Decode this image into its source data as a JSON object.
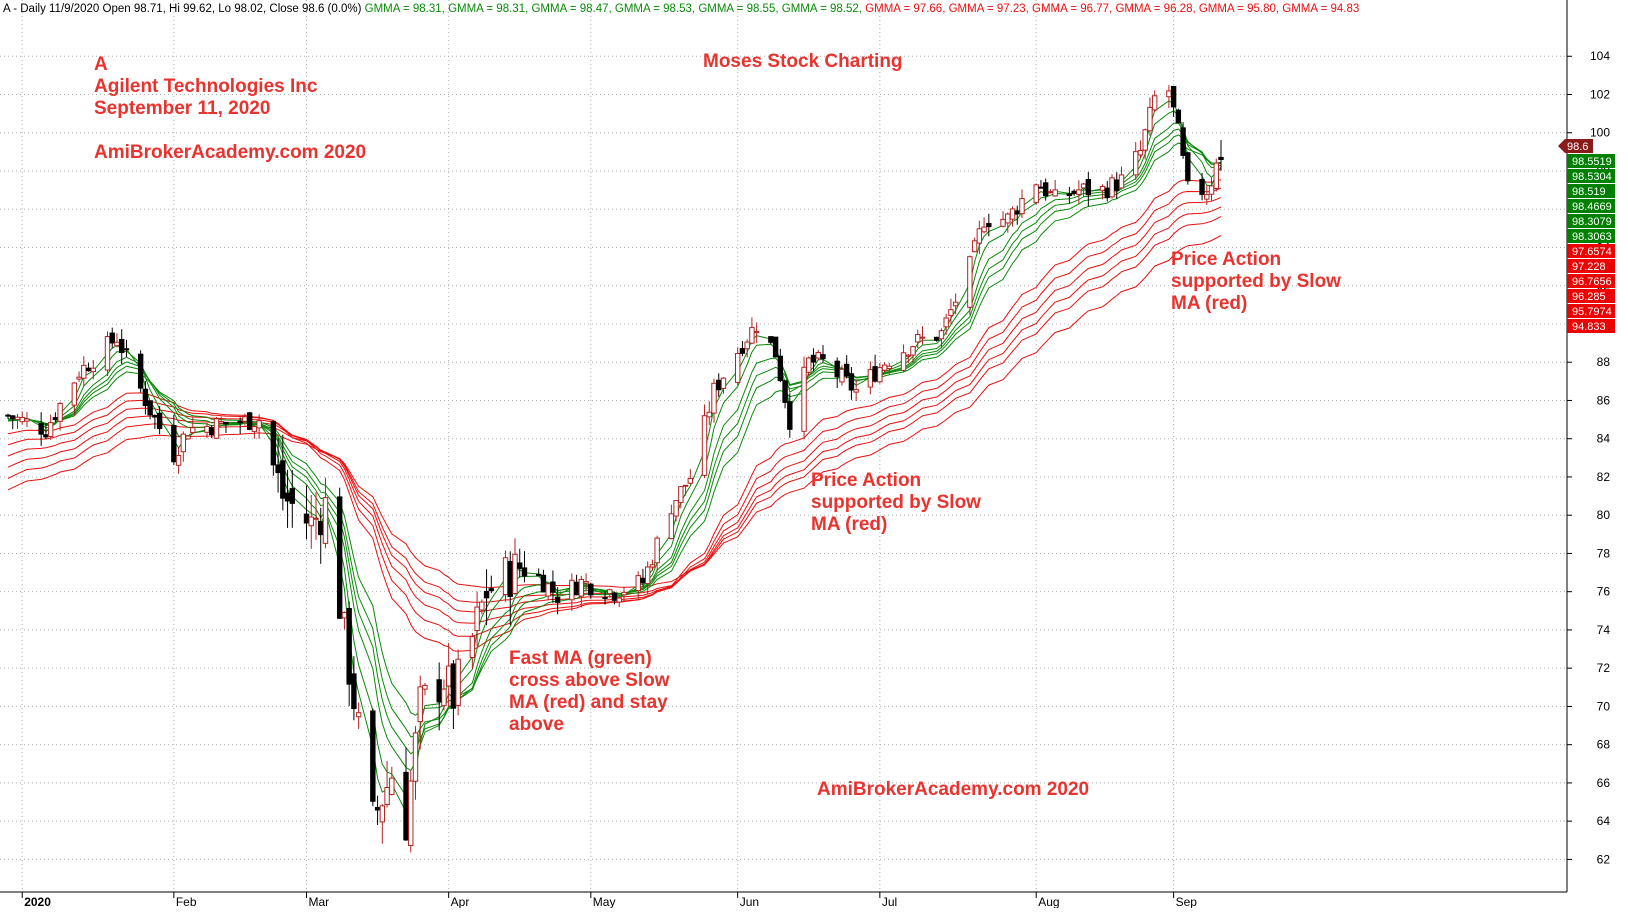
{
  "header": {
    "symbol": "A",
    "period": "Daily",
    "date": "11/9/2020",
    "open_label": "Open",
    "open": "98.71",
    "high_label": "Hi",
    "high": "99.62",
    "low_label": "Lo",
    "low": "98.02",
    "close_label": "Close",
    "close": "98.6",
    "change": "(0.0%)",
    "gmma_label": "GMMA",
    "gmma_fast": [
      "98.31",
      "98.31",
      "98.47",
      "98.53",
      "98.55",
      "98.52"
    ],
    "gmma_slow": [
      "97.66",
      "97.23",
      "96.77",
      "96.28",
      "95.80",
      "94.83"
    ]
  },
  "annotations": {
    "ticker": "A",
    "company": "Agilent Technologies Inc",
    "date_line": "September 11, 2020",
    "site_top": "AmiBrokerAcademy.com  2020",
    "title": "Moses Stock Charting",
    "site_bottom": "AmiBrokerAcademy.com  2020",
    "note_fast_cross": [
      "Fast MA (green)",
      "cross above Slow",
      "MA (red) and stay",
      "above"
    ],
    "note_support_mid": [
      "Price Action",
      "supported by Slow",
      "MA (red)"
    ],
    "note_support_right": [
      "Price Action",
      "supported by Slow",
      "MA (red)"
    ]
  },
  "price_tags": {
    "last": "98.6",
    "fast": [
      "98.5519",
      "98.5304",
      "98.519",
      "98.4669",
      "98.3079",
      "98.3063"
    ],
    "slow": [
      "97.6574",
      "97.228",
      "96.7656",
      "96.285",
      "95.7974",
      "94.833"
    ]
  },
  "colors": {
    "up_candle": "#b22222",
    "down_candle": "#000000",
    "fast_ma": "#0a8a0a",
    "slow_ma": "#e81010",
    "annotation": "#e8332f",
    "fast_tag_bg": "#008000",
    "slow_tag_bg": "#ee0000",
    "last_tag_bg": "#8b1a1a",
    "grid": "#b0b0b0"
  },
  "chart_data": {
    "type": "candlestick",
    "indicator": "GMMA (Guppy Multiple Moving Average)",
    "y_axis": {
      "ticks": [
        62,
        64,
        66,
        68,
        70,
        72,
        74,
        76,
        78,
        80,
        82,
        84,
        86,
        88,
        90,
        92,
        94,
        96,
        98,
        100,
        102,
        104
      ],
      "range": [
        60.4,
        106.0
      ],
      "position": "right"
    },
    "x_axis": {
      "ticks": [
        "2020",
        "Feb",
        "Mar",
        "Apr",
        "May",
        "Jun",
        "Jul",
        "Aug",
        "Sep"
      ],
      "tick_dates": [
        "2020-01-02",
        "2020-02-03",
        "2020-03-02",
        "2020-04-01",
        "2020-05-01",
        "2020-06-01",
        "2020-07-01",
        "2020-08-03",
        "2020-09-01"
      ],
      "range": [
        "2019-12-30",
        "2020-09-11"
      ]
    },
    "grid": true,
    "price_keypoints": [
      [
        "2019-12-30",
        85.2
      ],
      [
        "2020-01-07",
        84.5
      ],
      [
        "2020-01-14",
        87.5
      ],
      [
        "2020-01-22",
        89.3
      ],
      [
        "2020-01-29",
        85.5
      ],
      [
        "2020-02-03",
        83.2
      ],
      [
        "2020-02-06",
        84.5
      ],
      [
        "2020-02-14",
        84.8
      ],
      [
        "2020-02-21",
        85.0
      ],
      [
        "2020-02-26",
        81.0
      ],
      [
        "2020-03-03",
        79.5
      ],
      [
        "2020-03-06",
        80.5
      ],
      [
        "2020-03-11",
        72.0
      ],
      [
        "2020-03-16",
        64.0
      ],
      [
        "2020-03-20",
        66.5
      ],
      [
        "2020-03-23",
        64.0
      ],
      [
        "2020-03-26",
        70.0
      ],
      [
        "2020-03-31",
        71.5
      ],
      [
        "2020-04-02",
        70.5
      ],
      [
        "2020-04-06",
        73.5
      ],
      [
        "2020-04-09",
        76.0
      ],
      [
        "2020-04-17",
        77.5
      ],
      [
        "2020-04-24",
        75.8
      ],
      [
        "2020-04-29",
        76.5
      ],
      [
        "2020-05-06",
        76.0
      ],
      [
        "2020-05-12",
        76.5
      ],
      [
        "2020-05-18",
        80.5
      ],
      [
        "2020-05-22",
        82.0
      ],
      [
        "2020-05-27",
        86.5
      ],
      [
        "2020-06-02",
        89.0
      ],
      [
        "2020-06-05",
        90.0
      ],
      [
        "2020-06-09",
        88.5
      ],
      [
        "2020-06-12",
        85.0
      ],
      [
        "2020-06-16",
        88.0
      ],
      [
        "2020-06-19",
        88.0
      ],
      [
        "2020-06-26",
        86.5
      ],
      [
        "2020-07-02",
        88.0
      ],
      [
        "2020-07-08",
        89.0
      ],
      [
        "2020-07-14",
        89.5
      ],
      [
        "2020-07-20",
        93.0
      ],
      [
        "2020-07-23",
        95.5
      ],
      [
        "2020-07-28",
        95.5
      ],
      [
        "2020-08-03",
        97.5
      ],
      [
        "2020-08-07",
        96.5
      ],
      [
        "2020-08-12",
        97.0
      ],
      [
        "2020-08-17",
        97.0
      ],
      [
        "2020-08-21",
        97.5
      ],
      [
        "2020-08-25",
        99.0
      ],
      [
        "2020-08-28",
        101.8
      ],
      [
        "2020-08-31",
        102.2
      ],
      [
        "2020-09-02",
        100.0
      ],
      [
        "2020-09-04",
        97.0
      ],
      [
        "2020-09-08",
        97.0
      ],
      [
        "2020-09-09",
        97.5
      ],
      [
        "2020-09-10",
        98.7
      ],
      [
        "2020-09-11",
        98.6
      ]
    ],
    "last_bar": {
      "date": "2020-09-11",
      "open": 98.71,
      "high": 99.62,
      "low": 98.02,
      "close": 98.6
    },
    "series": [
      {
        "name": "GMMA",
        "group": "fast",
        "last": 98.31
      },
      {
        "name": "GMMA",
        "group": "fast",
        "last": 98.31
      },
      {
        "name": "GMMA",
        "group": "fast",
        "last": 98.47
      },
      {
        "name": "GMMA",
        "group": "fast",
        "last": 98.53
      },
      {
        "name": "GMMA",
        "group": "fast",
        "last": 98.55
      },
      {
        "name": "GMMA",
        "group": "fast",
        "last": 98.52
      },
      {
        "name": "GMMA",
        "group": "slow",
        "last": 97.66
      },
      {
        "name": "GMMA",
        "group": "slow",
        "last": 97.23
      },
      {
        "name": "GMMA",
        "group": "slow",
        "last": 96.77
      },
      {
        "name": "GMMA",
        "group": "slow",
        "last": 96.28
      },
      {
        "name": "GMMA",
        "group": "slow",
        "last": 95.8
      },
      {
        "name": "GMMA",
        "group": "slow",
        "last": 94.83
      }
    ]
  }
}
